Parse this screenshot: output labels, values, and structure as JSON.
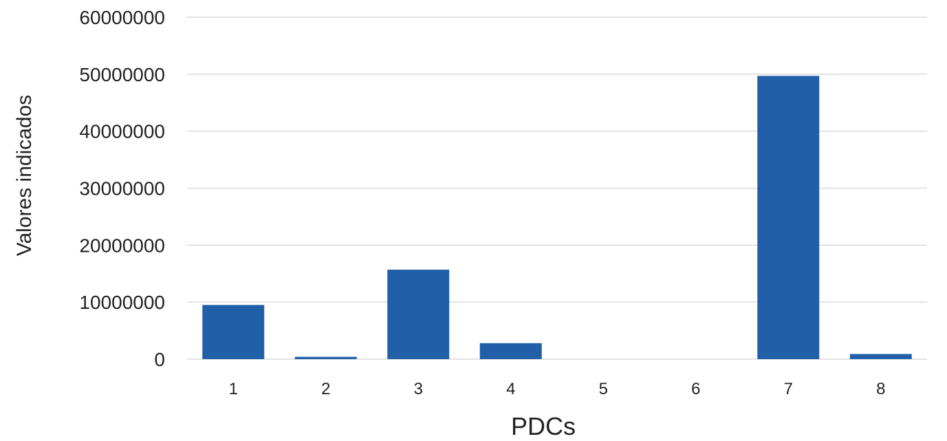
{
  "chart_data": {
    "type": "bar",
    "title": "",
    "xlabel": "PDCs",
    "ylabel": "Valores indicados",
    "categories": [
      "1",
      "2",
      "3",
      "4",
      "5",
      "6",
      "7",
      "8"
    ],
    "values": [
      9500000,
      400000,
      15700000,
      2800000,
      0,
      0,
      49700000,
      900000
    ],
    "ylim": [
      0,
      60000000
    ],
    "yticks": [
      "0",
      "10000000",
      "20000000",
      "30000000",
      "40000000",
      "50000000",
      "60000000"
    ],
    "grid": true,
    "legend": "none",
    "colors": {
      "bar": "#2160A9",
      "grid": "#D9D9D9",
      "text": "#222222"
    }
  }
}
